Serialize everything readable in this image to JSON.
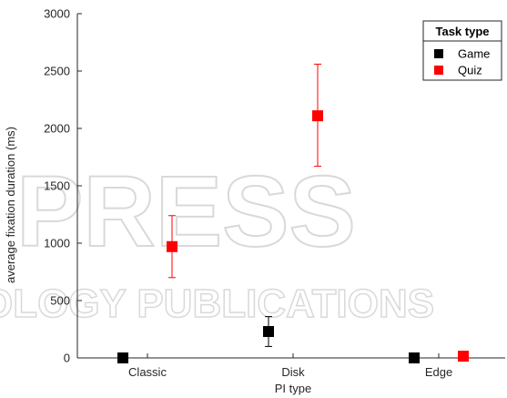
{
  "chart_data": {
    "type": "scatter",
    "error_bars": true,
    "xlabel": "PI type",
    "ylabel": "average fixation duration (ms)",
    "categories": [
      "Classic",
      "Disk",
      "Edge"
    ],
    "ylim": [
      0,
      3000
    ],
    "yticks": [
      0,
      500,
      1000,
      1500,
      2000,
      2500,
      3000
    ],
    "grid": false,
    "legend": {
      "title": "Task type",
      "position": "top-right"
    },
    "series": [
      {
        "name": "Game",
        "color": "#000000",
        "values": [
          0,
          230,
          0
        ],
        "err_low": [
          0,
          100,
          0
        ],
        "err_high": [
          0,
          360,
          0
        ]
      },
      {
        "name": "Quiz",
        "color": "#ff0000",
        "values": [
          970,
          2110,
          15
        ],
        "err_low": [
          700,
          1670,
          15
        ],
        "err_high": [
          1240,
          2560,
          15
        ]
      }
    ]
  },
  "watermark": {
    "line1": "PRESS",
    "line2": "OLOGY PUBLICATIONS"
  }
}
